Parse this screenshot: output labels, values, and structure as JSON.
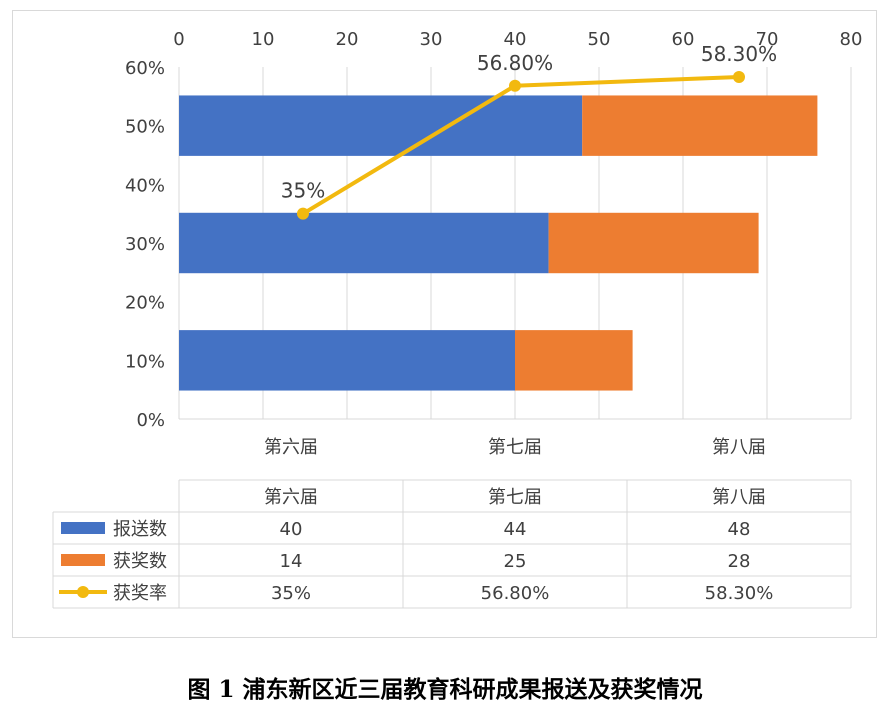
{
  "chart_data": {
    "type": "bar",
    "stacked": true,
    "orientation": "horizontal",
    "categories": [
      "第六届",
      "第七届",
      "第八届"
    ],
    "series": [
      {
        "name": "报送数",
        "kind": "bar",
        "axis": "top",
        "color": "#4472c4",
        "values": [
          40,
          44,
          48
        ]
      },
      {
        "name": "获奖数",
        "kind": "bar",
        "axis": "top",
        "color": "#ed7d31",
        "values": [
          14,
          25,
          28
        ]
      },
      {
        "name": "获奖率",
        "kind": "line",
        "axis": "left",
        "color": "#f2b90f",
        "values": [
          0.35,
          0.568,
          0.583
        ],
        "labels": [
          "35%",
          "56.80%",
          "58.30%"
        ]
      }
    ],
    "top_axis": {
      "ticks": [
        "0",
        "10",
        "20",
        "30",
        "40",
        "50",
        "60",
        "70",
        "80"
      ],
      "range": [
        0,
        80
      ]
    },
    "left_axis": {
      "ticks": [
        "0%",
        "10%",
        "20%",
        "30%",
        "40%",
        "50%",
        "60%"
      ],
      "range": [
        0,
        0.6
      ]
    },
    "grid": true,
    "data_table": {
      "rows": [
        {
          "name": "报送数",
          "cells": [
            "40",
            "44",
            "48"
          ]
        },
        {
          "name": "获奖数",
          "cells": [
            "14",
            "25",
            "28"
          ]
        },
        {
          "name": "获奖率",
          "cells": [
            "35%",
            "56.80%",
            "58.30%"
          ]
        }
      ]
    }
  },
  "caption": "图 1  浦东新区近三届教育科研成果报送及获奖情况"
}
